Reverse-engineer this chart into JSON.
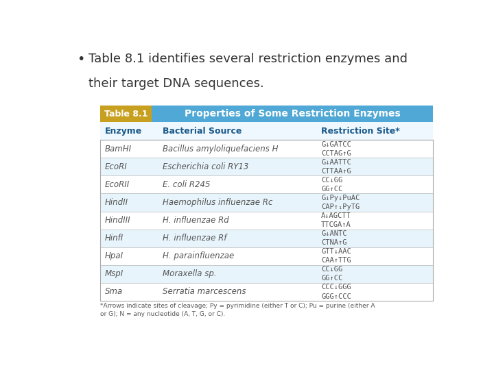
{
  "bullet_text_line1": "Table 8.1 identifies several restriction enzymes and",
  "bullet_text_line2": "their target DNA sequences.",
  "table_title_left": "Table 8.1",
  "table_title_right": "Properties of Some Restriction Enzymes",
  "col_headers": [
    "Enzyme",
    "Bacterial Source",
    "Restriction Site*"
  ],
  "rows": [
    [
      "BamHI",
      "Bacillus amyloliquefaciens H",
      "G↓GATCC\nCCTAG↑G"
    ],
    [
      "EcoRI",
      "Escherichia coli RY13",
      "G↓AATTC\nCTTAA↑G"
    ],
    [
      "EcoRII",
      "E. coli R245",
      "CC↓GG\nGG↑CC"
    ],
    [
      "HindII",
      "Haemophilus influenzae Rc",
      "G↓Py↓PuAC\nCAP↑₁PyTG"
    ],
    [
      "HindIII",
      "H. influenzae Rd",
      "A↓AGCTT\nTTCGA↑A"
    ],
    [
      "HinfI",
      "H. influenzae Rf",
      "G↓ANTC\nCTNA↑G"
    ],
    [
      "HpaI",
      "H. parainfluenzae",
      "GTT↓AAC\nCAA↑TTG"
    ],
    [
      "MspI",
      "Moraxella sp.",
      "CC↓GG\nGG↑CC"
    ],
    [
      "Sma",
      "Serratia marcescens",
      "CCC↓GGG\nGGG↑CCC"
    ]
  ],
  "footnote": "*Arrows indicate sites of cleavage; Py = pyrimidine (either T or C); Pu = purine (either A\nor G); N = any nucleotide (A, T, G, or C).",
  "header_bg": "#4fa8d5",
  "table_label_bg": "#c8a020",
  "col_header_color": "#1a5a8a",
  "row_enzyme_color": "#555555",
  "row_source_color": "#555555",
  "row_site_color": "#555555",
  "bg_color": "#ffffff",
  "bullet_color": "#333333",
  "table_border_color": "#aaaaaa",
  "alt_row_color": "#e8f4fb"
}
